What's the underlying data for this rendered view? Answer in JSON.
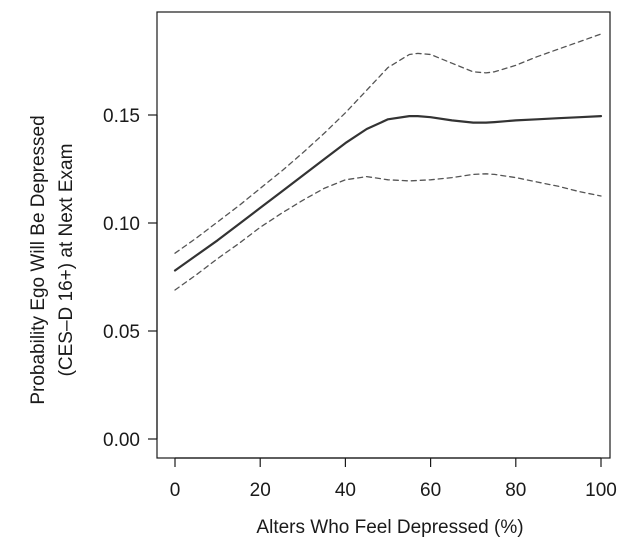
{
  "chart_data": {
    "type": "line",
    "title": "",
    "xlabel": "Alters Who Feel Depressed (%)",
    "ylabel_lines": [
      "Probability Ego Will Be Depressed",
      "(CES–D 16+) at Next Exam"
    ],
    "xlim": [
      0,
      100
    ],
    "ylim": [
      0,
      0.18
    ],
    "xticks": [
      0,
      20,
      40,
      60,
      80,
      100
    ],
    "xtick_labels": [
      "0",
      "20",
      "40",
      "60",
      "80",
      "100"
    ],
    "yticks": [
      0,
      0.05,
      0.1,
      0.15
    ],
    "ytick_labels": [
      "0.00",
      "0.05",
      "0.10",
      "0.15"
    ],
    "grid": false,
    "legend": "none",
    "series": [
      {
        "role": "estimate",
        "style": "solid",
        "color": "#333333",
        "x": [
          0,
          5,
          10,
          15,
          20,
          25,
          30,
          35,
          40,
          45,
          50,
          55,
          57,
          60,
          65,
          70,
          73,
          75,
          80,
          85,
          90,
          95,
          100
        ],
        "y": [
          0.078,
          0.085,
          0.092,
          0.0995,
          0.107,
          0.1145,
          0.122,
          0.1295,
          0.137,
          0.1435,
          0.148,
          0.1495,
          0.1495,
          0.149,
          0.1475,
          0.1465,
          0.1465,
          0.1467,
          0.1475,
          0.148,
          0.1485,
          0.149,
          0.1495
        ]
      },
      {
        "role": "upper-bound",
        "style": "dashed",
        "color": "#555555",
        "x": [
          0,
          5,
          10,
          15,
          20,
          25,
          30,
          35,
          40,
          45,
          50,
          55,
          57,
          60,
          65,
          70,
          73,
          75,
          80,
          85,
          90,
          95,
          100
        ],
        "y": [
          0.086,
          0.093,
          0.1005,
          0.108,
          0.116,
          0.124,
          0.1325,
          0.1415,
          0.151,
          0.1615,
          0.172,
          0.178,
          0.1785,
          0.178,
          0.174,
          0.17,
          0.1695,
          0.17,
          0.173,
          0.177,
          0.1805,
          0.184,
          0.1875
        ]
      },
      {
        "role": "lower-bound",
        "style": "dashed",
        "color": "#555555",
        "x": [
          0,
          5,
          10,
          15,
          20,
          25,
          30,
          35,
          40,
          45,
          50,
          55,
          60,
          65,
          70,
          73,
          75,
          80,
          85,
          90,
          95,
          100
        ],
        "y": [
          0.069,
          0.076,
          0.0835,
          0.0905,
          0.098,
          0.1045,
          0.1105,
          0.116,
          0.12,
          0.1215,
          0.12,
          0.1195,
          0.12,
          0.121,
          0.1225,
          0.1228,
          0.1225,
          0.121,
          0.119,
          0.117,
          0.1145,
          0.1125
        ]
      }
    ]
  }
}
